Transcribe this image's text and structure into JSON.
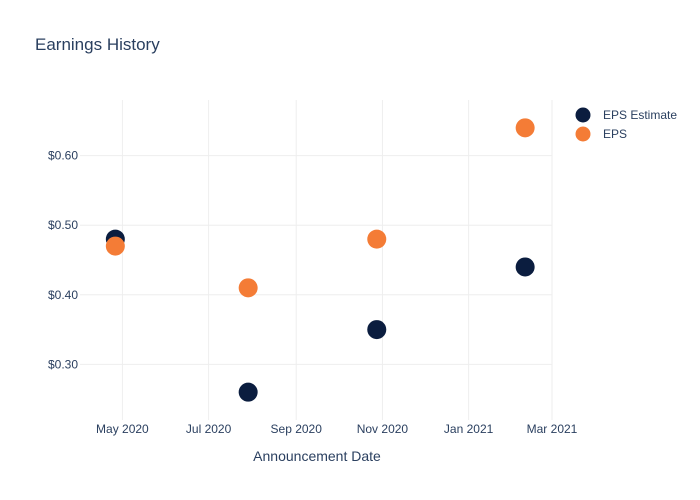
{
  "chart_data": {
    "type": "scatter",
    "title": "Earnings History",
    "xlabel": "Announcement Date",
    "ylabel": "",
    "x_ticks": [
      "May 2020",
      "Jul 2020",
      "Sep 2020",
      "Nov 2020",
      "Jan 2021",
      "Mar 2021"
    ],
    "y_ticks": [
      "$0.30",
      "$0.40",
      "$0.50",
      "$0.60"
    ],
    "ylim": [
      0.22,
      0.68
    ],
    "xlim": [
      "2020-04-01",
      "2021-03-01"
    ],
    "grid": true,
    "legend_position": "top-right",
    "series": [
      {
        "name": "EPS Estimate",
        "color": "#0b1d3f",
        "points": [
          {
            "x": "2020-04-26",
            "y": 0.48
          },
          {
            "x": "2020-07-29",
            "y": 0.26
          },
          {
            "x": "2020-10-28",
            "y": 0.35
          },
          {
            "x": "2021-02-10",
            "y": 0.44
          }
        ]
      },
      {
        "name": "EPS",
        "color": "#f47c36",
        "points": [
          {
            "x": "2020-04-26",
            "y": 0.47
          },
          {
            "x": "2020-07-29",
            "y": 0.41
          },
          {
            "x": "2020-10-28",
            "y": 0.48
          },
          {
            "x": "2021-02-10",
            "y": 0.64
          }
        ]
      }
    ]
  }
}
